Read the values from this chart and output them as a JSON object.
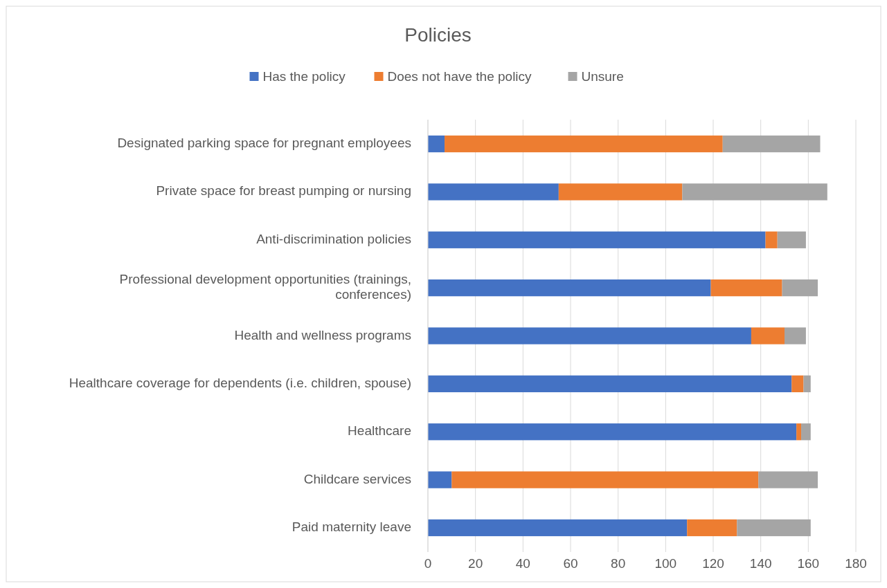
{
  "chart_data": {
    "type": "bar",
    "title": "Policies",
    "orientation": "horizontal",
    "stacked": true,
    "categories": [
      "Designated parking space for pregnant employees",
      "Private space for breast pumping or nursing",
      "Anti-discrimination policies",
      "Professional development opportunities (trainings, conferences)",
      "Health and wellness programs",
      "Healthcare coverage for dependents (i.e. children, spouse)",
      "Healthcare",
      "Childcare services",
      "Paid maternity leave"
    ],
    "series": [
      {
        "name": "Has the policy",
        "color": "#4472c4",
        "values": [
          7,
          55,
          142,
          119,
          136,
          153,
          155,
          10,
          109
        ]
      },
      {
        "name": "Does not have the policy",
        "color": "#ed7d31",
        "values": [
          117,
          52,
          5,
          30,
          14,
          5,
          2,
          129,
          21
        ]
      },
      {
        "name": "Unsure",
        "color": "#a5a5a5",
        "values": [
          41,
          61,
          12,
          15,
          9,
          3,
          4,
          25,
          31
        ]
      }
    ],
    "xlim": [
      0,
      180
    ],
    "xticks": [
      0,
      20,
      40,
      60,
      80,
      100,
      120,
      140,
      160,
      180
    ],
    "grid": "x",
    "legend": "top"
  }
}
